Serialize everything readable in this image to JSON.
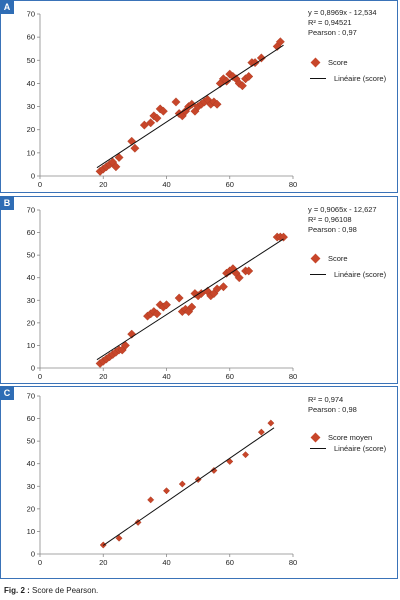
{
  "caption": {
    "label": "Fig. 2 :",
    "text": " Score de Pearson."
  },
  "chart_data": [
    {
      "panel_label": "A",
      "type": "scatter",
      "xlim": [
        0,
        80
      ],
      "ylim": [
        0,
        70
      ],
      "xticks": [
        0,
        20,
        40,
        60,
        80
      ],
      "yticks": [
        0,
        10,
        20,
        30,
        40,
        50,
        60,
        70
      ],
      "grid": false,
      "legend_position": "right",
      "stats": [
        "y = 0,8969x - 12,534",
        "R² = 0,94521",
        "Pearson : 0,97"
      ],
      "series": [
        {
          "name": "Score",
          "x": [
            19,
            20,
            21,
            22,
            23,
            24,
            25,
            29,
            30,
            33,
            35,
            36,
            37,
            38,
            39,
            43,
            44,
            45,
            46,
            47,
            48,
            49,
            50,
            51,
            52,
            53,
            54,
            55,
            56,
            57,
            58,
            59,
            60,
            61,
            62,
            63,
            64,
            65,
            66,
            67,
            68,
            70,
            75,
            76
          ],
          "y": [
            2,
            3,
            4,
            5,
            6,
            4,
            8,
            15,
            12,
            22,
            23,
            26,
            25,
            29,
            28,
            32,
            27,
            26,
            28,
            30,
            31,
            28,
            30,
            31,
            32,
            33,
            31,
            32,
            31,
            40,
            42,
            41,
            44,
            43,
            42,
            40,
            39,
            42,
            43,
            49,
            49,
            51,
            56,
            58
          ],
          "color": "#c8462a"
        }
      ],
      "trendline": {
        "name": "Linéaire (score)",
        "slope": 0.8969,
        "intercept": -12.534,
        "x_range": [
          18,
          77
        ]
      }
    },
    {
      "panel_label": "B",
      "type": "scatter",
      "xlim": [
        0,
        80
      ],
      "ylim": [
        0,
        70
      ],
      "xticks": [
        0,
        20,
        40,
        60,
        80
      ],
      "yticks": [
        0,
        10,
        20,
        30,
        40,
        50,
        60,
        70
      ],
      "grid": false,
      "legend_position": "right",
      "stats": [
        "y = 0,9065x - 12,627",
        "R² = 0,96108",
        "Pearson : 0,98"
      ],
      "series": [
        {
          "name": "Score",
          "x": [
            19,
            20,
            21,
            22,
            23,
            24,
            25,
            26,
            27,
            29,
            34,
            35,
            36,
            37,
            38,
            39,
            40,
            44,
            45,
            46,
            47,
            48,
            49,
            50,
            51,
            53,
            54,
            55,
            56,
            58,
            59,
            60,
            61,
            62,
            63,
            65,
            66,
            75,
            76,
            77
          ],
          "y": [
            2,
            3,
            4,
            5,
            6,
            7,
            8,
            8,
            10,
            15,
            23,
            24,
            25,
            24,
            28,
            27,
            28,
            31,
            25,
            26,
            25,
            27,
            33,
            32,
            33,
            34,
            32,
            33,
            35,
            36,
            42,
            43,
            44,
            42,
            40,
            43,
            43,
            58,
            58,
            58
          ],
          "color": "#c8462a"
        }
      ],
      "trendline": {
        "name": "Linéaire (score)",
        "slope": 0.9065,
        "intercept": -12.627,
        "x_range": [
          18,
          77
        ]
      }
    },
    {
      "panel_label": "C",
      "type": "scatter",
      "xlim": [
        0,
        80
      ],
      "ylim": [
        0,
        70
      ],
      "xticks": [
        0,
        20,
        40,
        60,
        80
      ],
      "yticks": [
        0,
        10,
        20,
        30,
        40,
        50,
        60,
        70
      ],
      "grid": false,
      "legend_position": "right",
      "stats": [
        "R² = 0,974",
        "Pearson : 0,98"
      ],
      "series": [
        {
          "name": "Score moyen",
          "x": [
            20,
            25,
            31,
            35,
            40,
            45,
            50,
            55,
            60,
            65,
            70,
            73
          ],
          "y": [
            4,
            7,
            14,
            24,
            28,
            31,
            33,
            37,
            41,
            44,
            54,
            58
          ],
          "color": "#c8462a"
        }
      ],
      "trendline": {
        "name": "Linéaire (score)",
        "slope": 0.965,
        "intercept": -15.5,
        "x_range": [
          20,
          74
        ]
      }
    }
  ]
}
